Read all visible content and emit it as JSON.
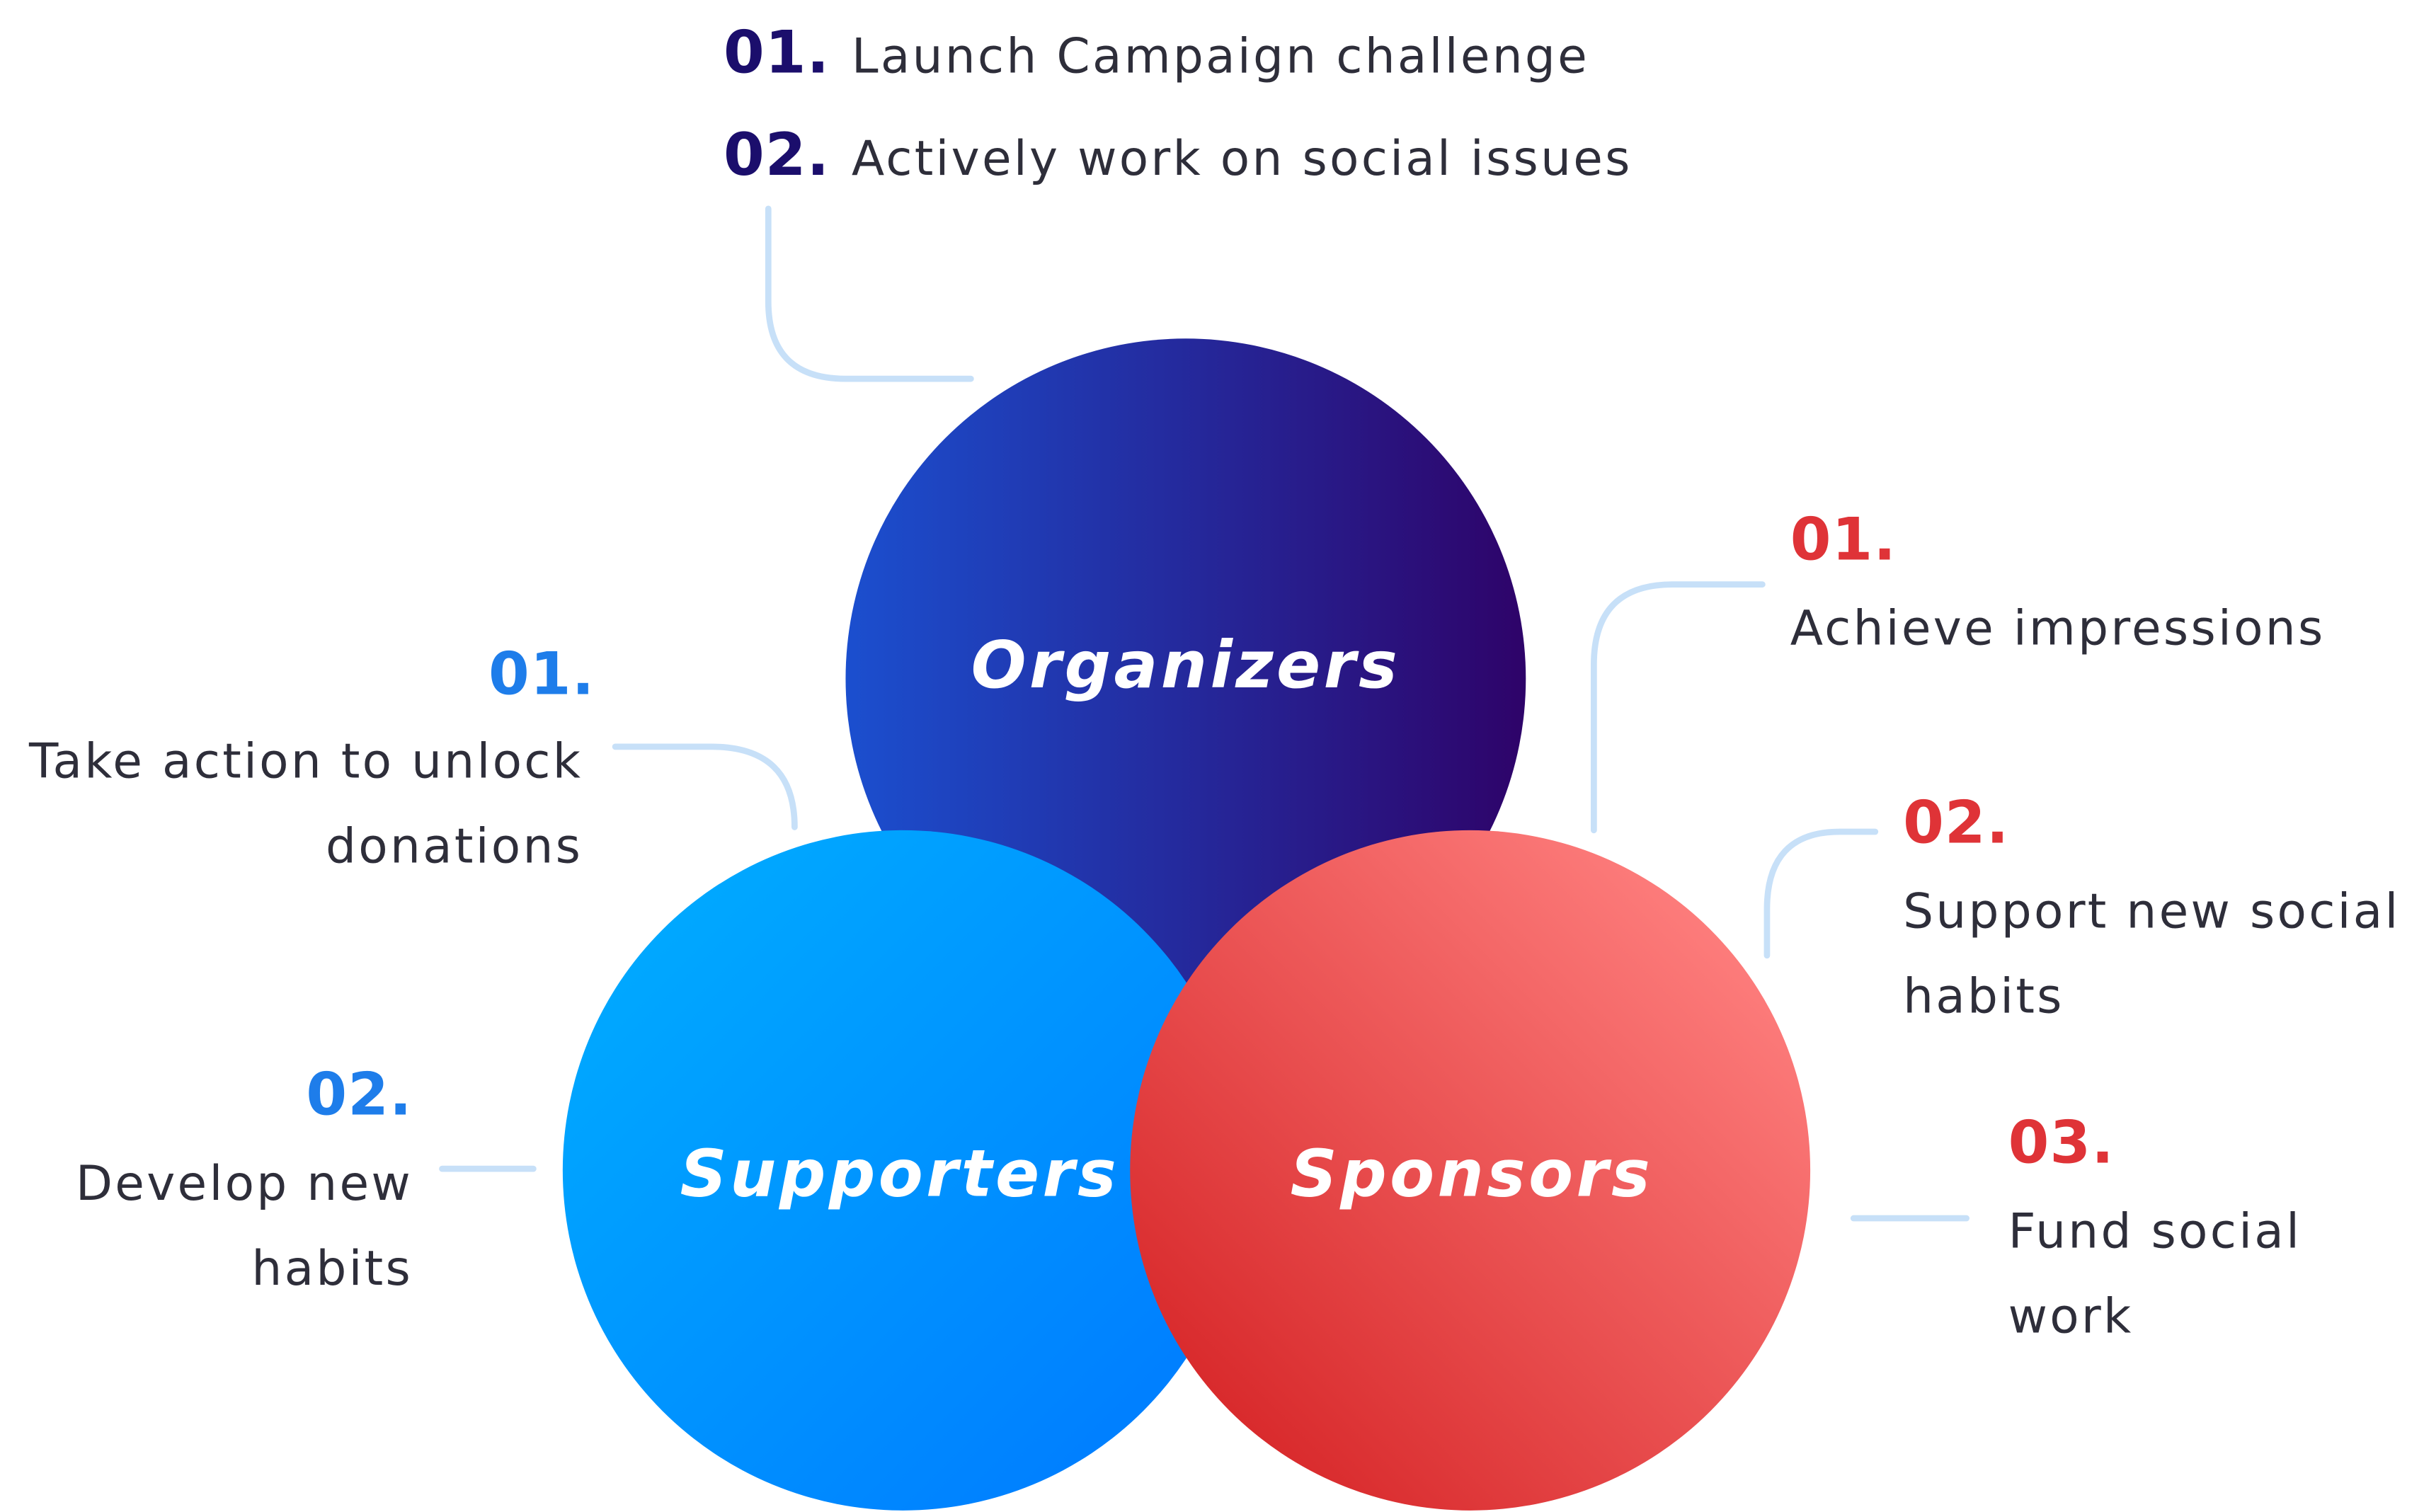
{
  "colors": {
    "organizers_start": "#1b4fcf",
    "organizers_end": "#2e0369",
    "supporters_start": "#00b0ff",
    "supporters_end": "#0077ff",
    "sponsors_start": "#ff8180",
    "sponsors_end": "#d92b2d",
    "connector": "#c7e0f8",
    "navy_numbers": "#1b0e6c",
    "blue_numbers": "#1e7dea",
    "red_numbers": "#df3337"
  },
  "organizers": {
    "title": "Organizers",
    "items": [
      {
        "num": "01.",
        "text": "Launch Campaign challenge"
      },
      {
        "num": "02.",
        "text": "Actively work on social issues"
      }
    ]
  },
  "supporters": {
    "title": "Supporters",
    "items": [
      {
        "num": "01.",
        "line1": "Take action to unlock",
        "line2": "donations"
      },
      {
        "num": "02.",
        "line1": "Develop new",
        "line2": "habits"
      }
    ]
  },
  "sponsors": {
    "title": "Sponsors",
    "items": [
      {
        "num": "01.",
        "line1": "Achieve impressions"
      },
      {
        "num": "02.",
        "line1": "Support new social",
        "line2": "habits"
      },
      {
        "num": "03.",
        "line1": "Fund social",
        "line2": "work"
      }
    ]
  }
}
